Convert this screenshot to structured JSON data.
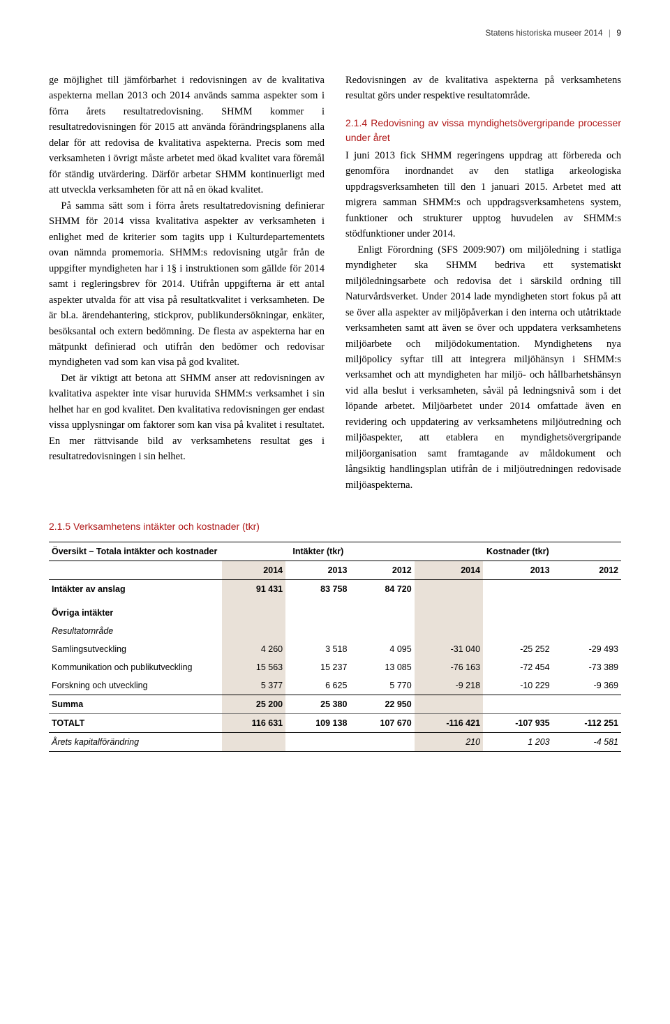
{
  "header": {
    "doc_title": "Statens historiska museer 2014",
    "page_number": "9"
  },
  "col_left": {
    "p1": "ge möjlighet till jämförbarhet i redovisningen av de kvalitativa aspekterna mellan 2013 och 2014 används samma aspekter som i förra årets resultatredovisning. SHMM kommer i resultatredovisningen för 2015 att använda förändringsplanens alla delar för att redovisa de kvalitativa aspekterna. Precis som med verksamheten i övrigt måste arbetet med ökad kvalitet vara föremål för ständig utvärdering. Därför arbetar SHMM kontinuerligt med att utveckla verksamheten för att nå en ökad kvalitet.",
    "p2": "På samma sätt som i förra årets resultatredovisning definierar SHMM för 2014 vissa kvalitativa aspekter av verksamheten i enlighet med de kriterier som tagits upp i Kulturdepartementets ovan nämnda promemoria. SHMM:s redovisning utgår från de uppgifter myndigheten har i 1§ i instruktionen som gällde för 2014 samt i regleringsbrev för 2014. Utifrån uppgifterna är ett antal aspekter utvalda för att visa på resultatkvalitet i verksamheten. De är bl.a. ärendehantering, stickprov, publikundersökningar, enkäter, besöksantal och extern bedömning. De flesta av aspekterna har en mätpunkt definierad och utifrån den bedömer och redovisar myndigheten vad som kan visa på god kvalitet.",
    "p3": "Det är viktigt att betona att SHMM anser att redovisningen av kvalitativa aspekter inte visar huruvida SHMM:s verksamhet i sin helhet har en god kvalitet. Den kvalitativa redovisningen ger endast vissa upplysningar om faktorer som kan visa på kvalitet i resultatet. En mer rättvisande bild av verksamhetens resultat ges i resultatredovisningen i sin helhet."
  },
  "col_right": {
    "p1": "Redovisningen av de kvalitativa aspekterna på verksamhetens resultat görs under respektive resultatområde.",
    "subhead": "2.1.4 Redovisning av vissa myndighets­övergripande processer under året",
    "p2": "I juni 2013 fick SHMM regeringens uppdrag att förbereda och genomföra inordnandet av den statliga arkeologiska uppdragsverksamheten till den 1 januari 2015. Arbetet med att migrera samman SHMM:s och uppdragsverksamhetens system, funktioner och strukturer upptog huvudelen av SHMM:s stödfunktioner under 2014.",
    "p3": "Enligt Förordning (SFS 2009:907) om miljöledning i statliga myndigheter ska SHMM bedriva ett systematiskt miljöledningsarbete och redovisa det i särskild ordning till Naturvårdsverket. Under 2014 lade myndigheten stort fokus på att se över alla aspekter av miljöpåverkan i den interna och utåtriktade verksamheten samt att även se över och uppdatera verksamhetens miljöarbete och miljödokumentation. Myndighetens nya miljöpolicy syftar till att integrera miljöhänsyn i SHMM:s verksamhet och att myndigheten har miljö- och hållbarhetshänsyn vid alla beslut i verksamheten, såväl på ledningsnivå som i det löpande arbetet. Miljöarbetet under 2014 omfattade även en revidering och uppdatering av verksamhetens miljöutredning och miljöaspekter, att etablera en myndighetsövergripande miljöorganisation samt framtagande av måldokument och långsiktig handlingsplan utifrån de i miljöutredningen redovisade miljöaspekterna."
  },
  "section215_head": "2.1.5 Verksamhetens intäkter och kostnader (tkr)",
  "table": {
    "title": "Översikt – Totala intäkter och kostnader",
    "group1": "Intäkter (tkr)",
    "group2": "Kostnader (tkr)",
    "years": [
      "2014",
      "2013",
      "2012",
      "2014",
      "2013",
      "2012"
    ],
    "rows": [
      {
        "label": "Intäkter av anslag",
        "vals": [
          "91 431",
          "83 758",
          "84 720",
          "",
          "",
          ""
        ],
        "bold": true
      },
      {
        "label": "Övriga intäkter",
        "vals": [
          "",
          "",
          "",
          "",
          "",
          ""
        ],
        "bold": true,
        "section": true
      },
      {
        "label": "Resultatområde",
        "vals": [
          "",
          "",
          "",
          "",
          "",
          ""
        ],
        "italic": true
      },
      {
        "label": "Samlingsutveckling",
        "vals": [
          "4 260",
          "3 518",
          "4 095",
          "-31 040",
          "-25 252",
          "-29 493"
        ]
      },
      {
        "label": "Kommunikation och publikutveckling",
        "vals": [
          "15 563",
          "15 237",
          "13 085",
          "-76 163",
          "-72 454",
          "-73 389"
        ]
      },
      {
        "label": "Forskning och utveckling",
        "vals": [
          "5 377",
          "6 625",
          "5 770",
          "-9 218",
          "-10 229",
          "-9 369"
        ]
      },
      {
        "label": "Summa",
        "vals": [
          "25 200",
          "25 380",
          "22 950",
          "",
          "",
          ""
        ],
        "bold": true
      },
      {
        "label": "TOTALT",
        "vals": [
          "116 631",
          "109 138",
          "107 670",
          "-116 421",
          "-107 935",
          "-112 251"
        ],
        "bold": true
      },
      {
        "label": "Årets kapitalförändring",
        "vals": [
          "",
          "",
          "",
          "210",
          "1 203",
          "-4 581"
        ],
        "italic": true
      }
    ]
  }
}
